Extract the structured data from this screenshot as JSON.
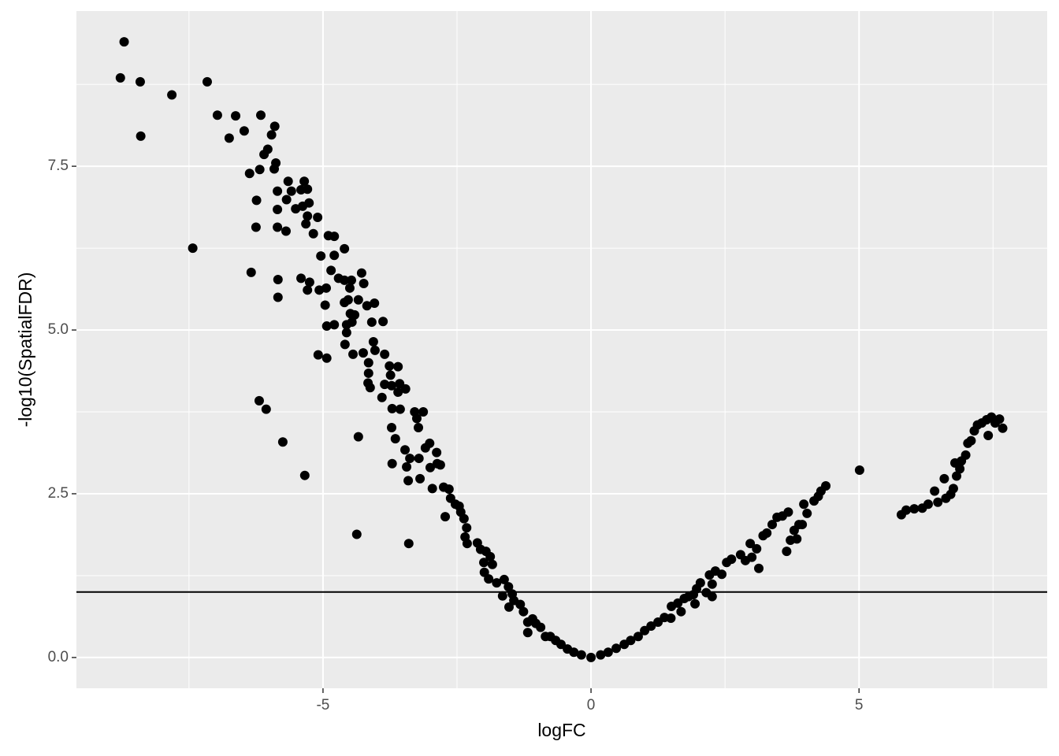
{
  "chart_data": {
    "type": "scatter",
    "x_label": "logFC",
    "y_label": "-log10(SpatialFDR)",
    "color": "#000000",
    "grid": true,
    "hline": 1,
    "xlim": [
      -9.6,
      8.51
    ],
    "ylim": [
      -0.47,
      9.87
    ],
    "xticks": [
      -5,
      0,
      5
    ],
    "yticks": [
      {
        "value": 0,
        "label": "0.0"
      },
      2.5,
      {
        "value": 5,
        "label": "5.0"
      },
      7.5
    ],
    "xminor": [
      -7.5,
      -2.5,
      2.5,
      7.5
    ],
    "yminor": [
      1.25,
      3.75,
      6.25,
      8.75
    ],
    "x": [
      -8.71,
      -8.78,
      -8.41,
      -8.4,
      -7.82,
      -7.16,
      -7.43,
      -6.97,
      -6.63,
      -6.75,
      -6.47,
      -6.16,
      -5.9,
      -5.96,
      -6.03,
      -6.1,
      -6.18,
      -6.37,
      -5.88,
      -5.91,
      -6.24,
      -6.25,
      -6.34,
      -5.85,
      -5.85,
      -5.85,
      -5.84,
      -5.84,
      -6.19,
      -6.06,
      -5.75,
      -5.34,
      -5.69,
      -5.65,
      -5.59,
      -5.68,
      -5.51,
      -5.41,
      -5.35,
      -5.29,
      -5.38,
      -5.26,
      -5.32,
      -5.29,
      -5.1,
      -5.18,
      -5.41,
      -5.29,
      -5.25,
      -5.04,
      -4.9,
      -4.79,
      -4.79,
      -4.85,
      -5.07,
      -4.96,
      -4.94,
      -4.93,
      -4.79,
      -5.09,
      -4.93,
      -4.6,
      -4.71,
      -4.6,
      -4.47,
      -4.5,
      -4.53,
      -4.6,
      -4.49,
      -4.41,
      -4.46,
      -4.56,
      -4.59,
      -4.56,
      -4.44,
      -4.28,
      -4.24,
      -4.34,
      -4.18,
      -4.04,
      -4.09,
      -3.88,
      -4.25,
      -4.15,
      -4.06,
      -4.03,
      -4.15,
      -4.16,
      -4.12,
      -3.85,
      -3.76,
      -3.85,
      -3.74,
      -3.6,
      -3.72,
      -3.57,
      -3.6,
      -3.9,
      -3.71,
      -3.46,
      -3.72,
      -3.65,
      -3.71,
      -3.56,
      -3.47,
      -3.44,
      -3.41,
      -3.38,
      -3.29,
      -3.25,
      -3.22,
      -3.13,
      -3.21,
      -3.19,
      -3.09,
      -3.01,
      -3.0,
      -2.96,
      -2.88,
      -2.87,
      -2.81,
      -2.75,
      -2.72,
      -2.65,
      -2.62,
      -2.53,
      -2.46,
      -2.43,
      -2.37,
      -2.32,
      -2.35,
      -2.31,
      -4.34,
      -4.37,
      -3.4,
      -2.12,
      -2.06,
      -1.96,
      -2.0,
      -1.88,
      -1.99,
      -1.84,
      -1.91,
      -1.76,
      -1.62,
      -1.65,
      -1.54,
      -1.47,
      -1.44,
      -1.53,
      -1.32,
      -1.26,
      -1.18,
      -1.18,
      -1.09,
      -1.03,
      -0.94,
      -0.85,
      -0.76,
      -0.66,
      -0.56,
      -0.44,
      -0.32,
      -0.18,
      0,
      0.18,
      0.32,
      0.47,
      0.62,
      0.74,
      0.88,
      1.0,
      1.12,
      1.25,
      1.37,
      1.49,
      1.5,
      1.62,
      1.68,
      1.74,
      1.82,
      1.91,
      1.94,
      1.97,
      2.04,
      2.15,
      2.21,
      2.26,
      2.26,
      2.32,
      2.44,
      2.53,
      2.62,
      2.79,
      2.88,
      2.97,
      3.0,
      3.09,
      3.13,
      3.21,
      3.28,
      3.38,
      3.47,
      3.57,
      3.68,
      3.65,
      3.72,
      3.79,
      3.84,
      3.88,
      3.94,
      3.97,
      4.03,
      4.16,
      4.24,
      4.29,
      4.38,
      5.01,
      5.79,
      5.88,
      6.03,
      6.18,
      6.29,
      6.41,
      6.47,
      6.59,
      6.62,
      6.71,
      6.76,
      6.79,
      6.82,
      6.88,
      6.91,
      6.99,
      7.03,
      7.09,
      7.15,
      7.21,
      7.29,
      7.38,
      7.41,
      7.47,
      7.54,
      7.62,
      7.68
    ],
    "values": [
      9.4,
      8.85,
      8.79,
      7.96,
      8.59,
      8.79,
      6.25,
      8.28,
      8.27,
      7.93,
      8.04,
      8.28,
      8.11,
      7.98,
      7.76,
      7.68,
      7.45,
      7.39,
      7.55,
      7.46,
      6.98,
      6.57,
      5.88,
      7.12,
      6.84,
      6.57,
      5.77,
      5.5,
      3.92,
      3.79,
      3.29,
      2.78,
      6.51,
      7.27,
      7.12,
      6.99,
      6.85,
      7.14,
      7.27,
      7.15,
      6.89,
      6.94,
      6.62,
      6.74,
      6.72,
      6.47,
      5.79,
      5.61,
      5.73,
      6.13,
      6.44,
      6.43,
      6.14,
      5.91,
      5.61,
      5.38,
      5.64,
      5.06,
      5.08,
      4.62,
      4.57,
      6.24,
      5.79,
      5.76,
      5.76,
      5.64,
      5.46,
      5.42,
      5.25,
      5.23,
      5.12,
      5.08,
      4.78,
      4.96,
      4.63,
      5.87,
      5.71,
      5.46,
      5.37,
      5.41,
      5.12,
      5.13,
      4.65,
      4.5,
      4.82,
      4.69,
      4.34,
      4.19,
      4.12,
      4.63,
      4.45,
      4.17,
      4.31,
      4.44,
      4.15,
      4.18,
      4.05,
      3.97,
      3.8,
      4.1,
      3.51,
      3.34,
      2.96,
      3.79,
      3.17,
      2.91,
      2.7,
      3.04,
      3.75,
      3.65,
      3.51,
      3.75,
      3.04,
      2.73,
      3.2,
      3.27,
      2.9,
      2.58,
      3.13,
      2.96,
      2.94,
      2.6,
      2.15,
      2.57,
      2.43,
      2.34,
      2.31,
      2.22,
      2.12,
      1.98,
      1.84,
      1.74,
      3.37,
      1.88,
      1.74,
      1.75,
      1.65,
      1.62,
      1.45,
      1.54,
      1.3,
      1.42,
      1.2,
      1.14,
      1.19,
      0.94,
      1.08,
      0.97,
      0.87,
      0.77,
      0.81,
      0.7,
      0.54,
      0.38,
      0.59,
      0.52,
      0.46,
      0.32,
      0.32,
      0.26,
      0.2,
      0.13,
      0.08,
      0.04,
      0,
      0.04,
      0.08,
      0.14,
      0.2,
      0.26,
      0.32,
      0.41,
      0.48,
      0.54,
      0.61,
      0.6,
      0.78,
      0.83,
      0.7,
      0.9,
      0.93,
      0.96,
      0.82,
      1.05,
      1.14,
      0.99,
      1.26,
      1.12,
      0.93,
      1.32,
      1.27,
      1.45,
      1.5,
      1.57,
      1.48,
      1.74,
      1.53,
      1.66,
      1.36,
      1.86,
      1.9,
      2.03,
      2.14,
      2.16,
      2.22,
      1.62,
      1.79,
      1.94,
      1.81,
      2.03,
      2.03,
      2.34,
      2.2,
      2.39,
      2.46,
      2.54,
      2.62,
      2.86,
      2.18,
      2.25,
      2.27,
      2.28,
      2.34,
      2.54,
      2.37,
      2.73,
      2.43,
      2.49,
      2.58,
      2.97,
      2.77,
      2.88,
      3.0,
      3.09,
      3.27,
      3.31,
      3.46,
      3.55,
      3.58,
      3.63,
      3.39,
      3.67,
      3.58,
      3.64,
      3.5
    ]
  }
}
